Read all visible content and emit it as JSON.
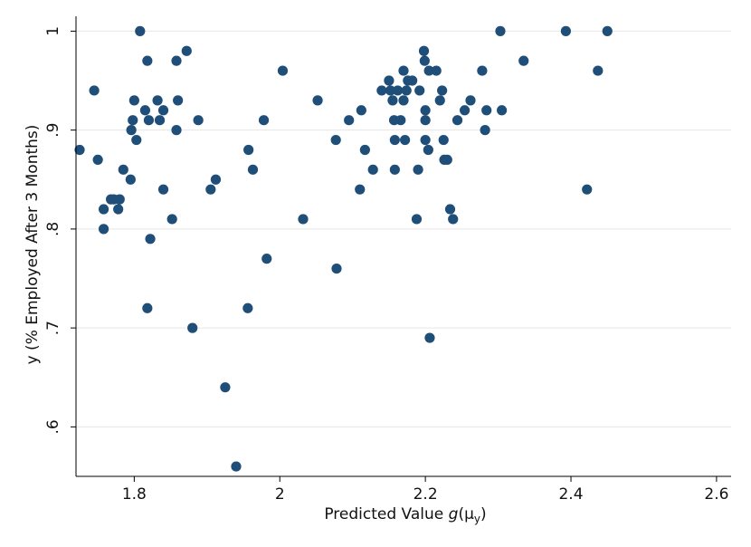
{
  "chart_data": {
    "type": "scatter",
    "title": "",
    "xlabel": {
      "prefix": "Predicted Value ",
      "func": "g",
      "open": "(",
      "mu": "μ",
      "sub": "y",
      "close": ")"
    },
    "ylabel": "y (% Employed After 3 Months)",
    "xlim": [
      1.72,
      2.62
    ],
    "ylim": [
      0.55,
      1.015
    ],
    "xticks": [
      {
        "value": 1.8,
        "label": "1.8"
      },
      {
        "value": 2.0,
        "label": "2"
      },
      {
        "value": 2.2,
        "label": "2.2"
      },
      {
        "value": 2.4,
        "label": "2.4"
      },
      {
        "value": 2.6,
        "label": "2.6"
      }
    ],
    "yticks": [
      {
        "value": 0.6,
        "label": ".6"
      },
      {
        "value": 0.7,
        "label": ".7"
      },
      {
        "value": 0.8,
        "label": ".8"
      },
      {
        "value": 0.9,
        "label": ".9"
      },
      {
        "value": 1.0,
        "label": "1"
      }
    ],
    "grid": true,
    "marker_color": "#1f4e79",
    "points": [
      [
        1.725,
        0.88
      ],
      [
        1.745,
        0.94
      ],
      [
        1.75,
        0.87
      ],
      [
        1.758,
        0.82
      ],
      [
        1.758,
        0.8
      ],
      [
        1.768,
        0.83
      ],
      [
        1.772,
        0.83
      ],
      [
        1.778,
        0.82
      ],
      [
        1.78,
        0.83
      ],
      [
        1.785,
        0.86
      ],
      [
        1.795,
        0.85
      ],
      [
        1.796,
        0.9
      ],
      [
        1.798,
        0.91
      ],
      [
        1.8,
        0.93
      ],
      [
        1.803,
        0.89
      ],
      [
        1.808,
        1.0
      ],
      [
        1.815,
        0.92
      ],
      [
        1.818,
        0.97
      ],
      [
        1.818,
        0.72
      ],
      [
        1.82,
        0.91
      ],
      [
        1.822,
        0.79
      ],
      [
        1.832,
        0.93
      ],
      [
        1.835,
        0.91
      ],
      [
        1.84,
        0.92
      ],
      [
        1.84,
        0.84
      ],
      [
        1.852,
        0.81
      ],
      [
        1.858,
        0.9
      ],
      [
        1.858,
        0.97
      ],
      [
        1.86,
        0.93
      ],
      [
        1.872,
        0.98
      ],
      [
        1.88,
        0.7
      ],
      [
        1.888,
        0.91
      ],
      [
        1.905,
        0.84
      ],
      [
        1.912,
        0.85
      ],
      [
        1.925,
        0.64
      ],
      [
        1.94,
        0.56
      ],
      [
        1.956,
        0.72
      ],
      [
        1.957,
        0.88
      ],
      [
        1.963,
        0.86
      ],
      [
        1.978,
        0.91
      ],
      [
        1.982,
        0.77
      ],
      [
        2.004,
        0.96
      ],
      [
        2.032,
        0.81
      ],
      [
        2.052,
        0.93
      ],
      [
        2.077,
        0.89
      ],
      [
        2.078,
        0.76
      ],
      [
        2.095,
        0.91
      ],
      [
        2.11,
        0.84
      ],
      [
        2.112,
        0.92
      ],
      [
        2.117,
        0.88
      ],
      [
        2.128,
        0.86
      ],
      [
        2.14,
        0.94
      ],
      [
        2.15,
        0.95
      ],
      [
        2.152,
        0.94
      ],
      [
        2.155,
        0.93
      ],
      [
        2.157,
        0.91
      ],
      [
        2.158,
        0.89
      ],
      [
        2.158,
        0.86
      ],
      [
        2.162,
        0.94
      ],
      [
        2.166,
        0.91
      ],
      [
        2.17,
        0.93
      ],
      [
        2.17,
        0.96
      ],
      [
        2.172,
        0.89
      ],
      [
        2.174,
        0.94
      ],
      [
        2.176,
        0.95
      ],
      [
        2.182,
        0.95
      ],
      [
        2.188,
        0.81
      ],
      [
        2.19,
        0.86
      ],
      [
        2.192,
        0.94
      ],
      [
        2.198,
        0.98
      ],
      [
        2.199,
        0.97
      ],
      [
        2.2,
        0.92
      ],
      [
        2.2,
        0.91
      ],
      [
        2.2,
        0.89
      ],
      [
        2.204,
        0.88
      ],
      [
        2.205,
        0.96
      ],
      [
        2.206,
        0.69
      ],
      [
        2.215,
        0.96
      ],
      [
        2.22,
        0.93
      ],
      [
        2.223,
        0.94
      ],
      [
        2.225,
        0.89
      ],
      [
        2.226,
        0.87
      ],
      [
        2.23,
        0.87
      ],
      [
        2.234,
        0.82
      ],
      [
        2.238,
        0.81
      ],
      [
        2.244,
        0.91
      ],
      [
        2.254,
        0.92
      ],
      [
        2.262,
        0.93
      ],
      [
        2.278,
        0.96
      ],
      [
        2.282,
        0.9
      ],
      [
        2.284,
        0.92
      ],
      [
        2.303,
        1.0
      ],
      [
        2.305,
        0.92
      ],
      [
        2.335,
        0.97
      ],
      [
        2.393,
        1.0
      ],
      [
        2.422,
        0.84
      ],
      [
        2.437,
        0.96
      ],
      [
        2.45,
        1.0
      ]
    ]
  }
}
